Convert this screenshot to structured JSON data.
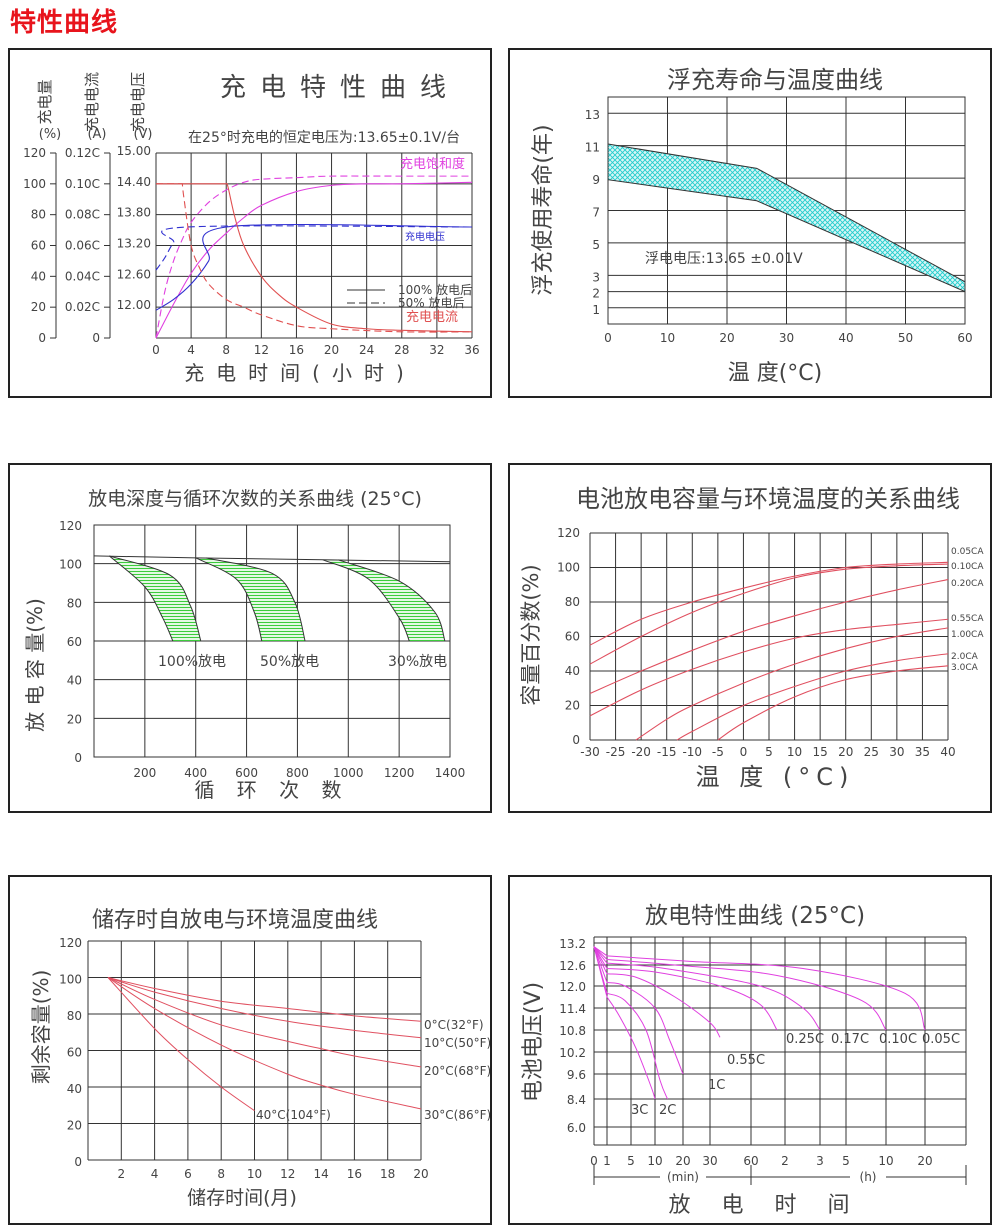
{
  "page": {
    "title": "特性曲线"
  },
  "chart_data": [
    {
      "id": "charge",
      "type": "line",
      "title": "充电特性曲线",
      "subtitle": "在25°时充电的恒定电压为:13.65±0.1V/台",
      "xlabel": "充电时间(小时)",
      "ylabels": [
        "充电量 (%)",
        "充电电流 (A)",
        "充电电压 (V)"
      ],
      "x_ticks": [
        0,
        4,
        8,
        12,
        16,
        20,
        24,
        28,
        32,
        36
      ],
      "y_ticks_percent": [
        "120",
        "100",
        "80",
        "60",
        "40",
        "20",
        "0"
      ],
      "y_ticks_current": [
        "0.12C",
        "0.10C",
        "0.08C",
        "0.06C",
        "0.04C",
        "0.02C",
        "0"
      ],
      "y_ticks_voltage": [
        "15.00",
        "14.40",
        "13.80",
        "13.20",
        "12.60",
        "12.00",
        ""
      ],
      "xlim": [
        0,
        36
      ],
      "ylim_percent": [
        0,
        120
      ],
      "labels": {
        "saturation": "充电饱和度",
        "voltage": "充电电压",
        "current": "充电电流"
      },
      "legend": [
        {
          "style": "solid",
          "label": "100% 放电后"
        },
        {
          "style": "dashed",
          "label": "50% 放电后"
        }
      ],
      "series": [
        {
          "name": "充电饱和度 100%",
          "color": "#e040e0",
          "dash": false,
          "x": [
            0,
            2,
            4,
            6,
            8,
            10,
            12,
            16,
            20,
            24,
            28,
            36
          ],
          "y": [
            0,
            22,
            42,
            57,
            68,
            78,
            86,
            95,
            99,
            100,
            100,
            101
          ]
        },
        {
          "name": "充电饱和度 50%",
          "color": "#e040e0",
          "dash": true,
          "x": [
            0,
            1,
            2,
            3,
            4,
            6,
            8,
            10,
            12,
            16,
            20,
            28,
            36
          ],
          "y": [
            0,
            30,
            50,
            64,
            75,
            88,
            96,
            101,
            103,
            104,
            105,
            105,
            105
          ]
        },
        {
          "name": "充电电压 100%",
          "color": "#3030d0",
          "dash": false,
          "x": [
            0,
            2,
            4,
            6,
            8,
            36
          ],
          "y": [
            18,
            25,
            35,
            50,
            72,
            72
          ]
        },
        {
          "name": "充电电压 50%",
          "color": "#3030d0",
          "dash": true,
          "x": [
            0,
            1,
            2,
            3.5,
            36
          ],
          "y": [
            44,
            52,
            62,
            72,
            72
          ]
        },
        {
          "name": "充电电流 100%",
          "color": "#e05050",
          "dash": false,
          "x": [
            0,
            8,
            8.2,
            9,
            10,
            12,
            14,
            16,
            20,
            24,
            28,
            36
          ],
          "y": [
            100,
            100,
            98,
            78,
            60,
            40,
            28,
            20,
            9,
            6,
            5,
            4
          ]
        },
        {
          "name": "充电电流 50%",
          "color": "#e05050",
          "dash": true,
          "x": [
            0,
            3,
            3.2,
            4,
            5,
            6,
            8,
            10,
            12,
            16,
            20,
            28,
            36
          ],
          "y": [
            100,
            100,
            90,
            60,
            45,
            35,
            25,
            20,
            15,
            8,
            6,
            4,
            4
          ]
        }
      ]
    },
    {
      "id": "float-life",
      "type": "area",
      "title": "浮充寿命与温度曲线",
      "xlabel": "温 度(°C)",
      "ylabel": "浮充使用寿命(年)",
      "x_ticks": [
        0,
        10,
        20,
        30,
        40,
        50,
        60
      ],
      "y_ticks": [
        13,
        11,
        9,
        7,
        5,
        3,
        2,
        1
      ],
      "xlim": [
        0,
        60
      ],
      "ylim": [
        0,
        14
      ],
      "annotation": "浮电电压:13.65  ±0.01V",
      "fill_color": "#33d6d6",
      "upper": {
        "x": [
          0,
          25,
          60
        ],
        "y": [
          11.1,
          9.6,
          2.6
        ]
      },
      "lower": {
        "x": [
          0,
          25,
          60
        ],
        "y": [
          8.9,
          7.6,
          2.0
        ]
      }
    },
    {
      "id": "cycle-life",
      "type": "area",
      "title": "放电深度与循环次数的关系曲线 (25°C)",
      "xlabel": "循 环 次 数",
      "ylabel": "放 电 容 量(%)",
      "x_ticks": [
        200,
        400,
        600,
        800,
        1000,
        1200,
        1400
      ],
      "y_ticks": [
        120,
        100,
        80,
        60,
        40,
        20,
        0
      ],
      "xlim": [
        0,
        1400
      ],
      "ylim": [
        0,
        120
      ],
      "fill_color": "#3ccc3c",
      "baseline": {
        "x": [
          0,
          400,
          900,
          1400
        ],
        "y": [
          104,
          103,
          102,
          101
        ]
      },
      "bands": [
        {
          "label": "100%放电",
          "left": {
            "x": [
              60,
              200,
              270,
              310
            ],
            "y": [
              104,
              88,
              72,
              60
            ]
          },
          "right": {
            "x": [
              60,
              300,
              380,
              420
            ],
            "y": [
              104,
              94,
              78,
              60
            ]
          }
        },
        {
          "label": "50%放电",
          "left": {
            "x": [
              400,
              560,
              630,
              660
            ],
            "y": [
              103,
              92,
              75,
              60
            ]
          },
          "right": {
            "x": [
              440,
              700,
              790,
              830
            ],
            "y": [
              103,
              95,
              80,
              60
            ]
          }
        },
        {
          "label": "30%放电",
          "left": {
            "x": [
              900,
              1080,
              1200,
              1240
            ],
            "y": [
              102,
              92,
              72,
              60
            ]
          },
          "right": {
            "x": [
              960,
              1200,
              1340,
              1380
            ],
            "y": [
              102,
              91,
              75,
              60
            ]
          }
        }
      ]
    },
    {
      "id": "temp-capacity",
      "type": "line",
      "title": "电池放电容量与环境温度的关系曲线",
      "xlabel": "温 度 (°C)",
      "ylabel": "容量百分数(%)",
      "x_ticks": [
        -30,
        -25,
        -20,
        -15,
        -10,
        -5,
        0,
        5,
        10,
        15,
        20,
        25,
        30,
        35,
        40
      ],
      "y_ticks": [
        120,
        100,
        80,
        60,
        40,
        20,
        0
      ],
      "xlim": [
        -30,
        40
      ],
      "ylim": [
        0,
        120
      ],
      "color": "#e05060",
      "series": [
        {
          "name": "0.05CA",
          "x": [
            -30,
            -20,
            -10,
            0,
            10,
            20,
            30,
            40
          ],
          "y": [
            55,
            70,
            80,
            88,
            95,
            100,
            102,
            103
          ]
        },
        {
          "name": "0.10CA",
          "x": [
            -30,
            -20,
            -10,
            0,
            10,
            20,
            30,
            40
          ],
          "y": [
            44,
            60,
            74,
            85,
            94,
            99,
            101,
            102
          ]
        },
        {
          "name": "0.20CA",
          "x": [
            -30,
            -20,
            -10,
            0,
            10,
            20,
            30,
            40
          ],
          "y": [
            27,
            40,
            52,
            63,
            72,
            80,
            87,
            93
          ]
        },
        {
          "name": "0.55CA",
          "x": [
            -30,
            -20,
            -10,
            0,
            10,
            20,
            30,
            40
          ],
          "y": [
            14,
            29,
            41,
            51,
            59,
            64,
            67,
            70
          ]
        },
        {
          "name": "1.00CA",
          "x": [
            -21,
            -15,
            -10,
            0,
            10,
            20,
            30,
            40
          ],
          "y": [
            0,
            12,
            20,
            33,
            44,
            53,
            60,
            65
          ]
        },
        {
          "name": "2.0CA",
          "x": [
            -13,
            -10,
            0,
            10,
            20,
            30,
            40
          ],
          "y": [
            0,
            5,
            20,
            31,
            40,
            46,
            50
          ]
        },
        {
          "name": "3.0CA",
          "x": [
            -5,
            0,
            10,
            20,
            30,
            40
          ],
          "y": [
            0,
            10,
            25,
            35,
            40,
            43
          ]
        }
      ]
    },
    {
      "id": "self-discharge",
      "type": "line",
      "title": "储存时自放电与环境温度曲线",
      "xlabel": "储存时间(月)",
      "ylabel": "剩余容量(%)",
      "x_ticks": [
        2,
        4,
        6,
        8,
        10,
        12,
        14,
        16,
        18,
        20
      ],
      "y_ticks": [
        120,
        100,
        80,
        60,
        40,
        20,
        0
      ],
      "xlim": [
        0,
        20
      ],
      "ylim": [
        0,
        120
      ],
      "color": "#e05060",
      "series": [
        {
          "name": "0°C(32°F)",
          "x": [
            1.2,
            4,
            8,
            12,
            16,
            20
          ],
          "y": [
            100,
            94,
            87,
            83,
            79,
            76
          ]
        },
        {
          "name": "10°C(50°F)",
          "x": [
            1.2,
            4,
            8,
            12,
            16,
            20
          ],
          "y": [
            100,
            92,
            83,
            76,
            71,
            67
          ]
        },
        {
          "name": "20°C(68°F)",
          "x": [
            1.2,
            4,
            8,
            12,
            14,
            16,
            20
          ],
          "y": [
            100,
            88,
            74,
            65,
            61,
            57,
            51
          ]
        },
        {
          "name": "30°C(86°F)",
          "x": [
            1.2,
            4,
            8,
            12,
            14,
            16,
            20
          ],
          "y": [
            100,
            83,
            63,
            47,
            41,
            36,
            28
          ]
        },
        {
          "name": "40°C(104°F)",
          "x": [
            1.2,
            4,
            6,
            8,
            10
          ],
          "y": [
            100,
            72,
            55,
            40,
            27
          ]
        }
      ]
    },
    {
      "id": "discharge",
      "type": "line",
      "title": "放电特性曲线 (25°C)",
      "xlabel": "放 电 时 间",
      "ylabel": "电池电压(V)",
      "x_ticks": [
        "0",
        "1",
        "5",
        "10",
        "20",
        "30",
        "60",
        "2",
        "3",
        "5",
        "10",
        "20"
      ],
      "x_units": [
        {
          "label": "(min)",
          "from": "0",
          "to": "60"
        },
        {
          "label": "(h)",
          "from": "60",
          "to": "end"
        }
      ],
      "y_ticks": [
        "13.2",
        "12.6",
        "12.0",
        "11.4",
        "10.8",
        "10.2",
        "9.6",
        "8.4",
        "6.0"
      ],
      "color": "#e040e0",
      "series": [
        {
          "name": "3C",
          "x": [
            0,
            1,
            3,
            6,
            9,
            10
          ],
          "y": [
            13.1,
            11.7,
            11.2,
            10.3,
            9.0,
            8.4
          ]
        },
        {
          "name": "2C",
          "x": [
            0,
            1,
            4,
            8,
            11,
            12.5
          ],
          "y": [
            13.1,
            11.8,
            11.6,
            10.8,
            9.3,
            8.4
          ]
        },
        {
          "name": "1C",
          "x": [
            0,
            1,
            4,
            10,
            13,
            15
          ],
          "y": [
            13.1,
            12.1,
            12.0,
            11.4,
            10.5,
            9.6
          ]
        },
        {
          "name": "0.55C",
          "x": [
            0,
            1,
            6,
            14,
            19,
            20
          ],
          "y": [
            13.1,
            12.35,
            12.25,
            11.7,
            11.0,
            10.6
          ]
        },
        {
          "name": "0.25C",
          "x": [
            0,
            1,
            10,
            20,
            24,
            26
          ],
          "y": [
            13.1,
            12.5,
            12.4,
            12.0,
            11.5,
            10.8
          ]
        },
        {
          "name": "0.17C",
          "x": [
            0,
            1,
            12,
            24,
            28,
            29
          ],
          "y": [
            13.1,
            12.65,
            12.5,
            12.0,
            11.4,
            10.8
          ]
        },
        {
          "name": "0.10C",
          "x": [
            0,
            1,
            14,
            26,
            31,
            32
          ],
          "y": [
            13.1,
            12.75,
            12.6,
            12.3,
            11.6,
            10.8
          ]
        },
        {
          "name": "0.05C",
          "x": [
            0,
            1,
            16,
            28,
            33,
            35
          ],
          "y": [
            13.1,
            12.85,
            12.7,
            12.5,
            11.8,
            10.8
          ]
        }
      ]
    }
  ]
}
